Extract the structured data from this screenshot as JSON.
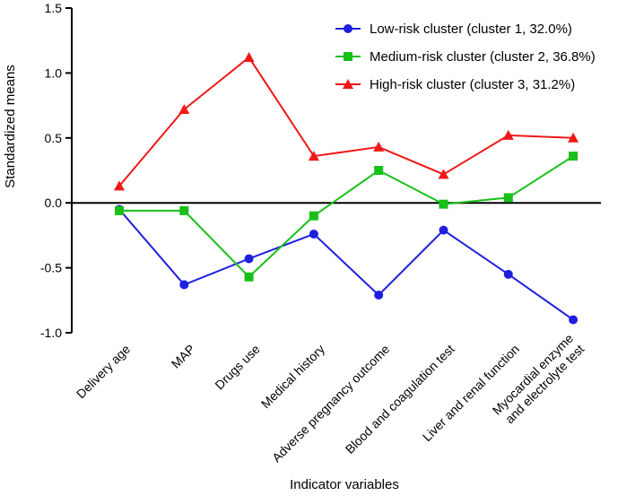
{
  "chart_data": {
    "type": "line",
    "title": "",
    "xlabel": "Indicator variables",
    "ylabel": "Standardized means",
    "ylim": [
      -1.0,
      1.5
    ],
    "yticks": [
      -1.0,
      -0.5,
      0.0,
      0.5,
      1.0,
      1.5
    ],
    "ytick_labels": [
      "-1.0",
      "-0.5",
      "0.0",
      "0.5",
      "1.0",
      "1.5"
    ],
    "categories": [
      "Delivery age",
      "MAP",
      "Drugs use",
      "Medical history",
      "Adverse pregnancy outcome",
      "Blood and coagulation test",
      "Liver and renal function",
      "Myocardial enzyme and electrolyte test"
    ],
    "category_lines": [
      [
        "Delivery age"
      ],
      [
        "MAP"
      ],
      [
        "Drugs use"
      ],
      [
        "Medical history"
      ],
      [
        "Adverse pregnancy outcome"
      ],
      [
        "Blood and coagulation test"
      ],
      [
        "Liver and renal function"
      ],
      [
        "Myocardial enzyme",
        "and electrolyte test"
      ]
    ],
    "legend_position": "top-right",
    "series": [
      {
        "name": "Low-risk cluster (cluster 1, 32.0%)",
        "color": "#1f1fe0",
        "marker": "circle",
        "values": [
          -0.05,
          -0.63,
          -0.43,
          -0.24,
          -0.71,
          -0.21,
          -0.55,
          -0.9
        ]
      },
      {
        "name": "Medium-risk cluster (cluster 2, 36.8%)",
        "color": "#18c018",
        "marker": "square",
        "values": [
          -0.06,
          -0.06,
          -0.57,
          -0.1,
          0.25,
          -0.01,
          0.04,
          0.36
        ]
      },
      {
        "name": "High-risk cluster (cluster 3, 31.2%)",
        "color": "#f01818",
        "marker": "triangle",
        "values": [
          0.13,
          0.72,
          1.12,
          0.36,
          0.43,
          0.22,
          0.52,
          0.5
        ]
      }
    ]
  }
}
